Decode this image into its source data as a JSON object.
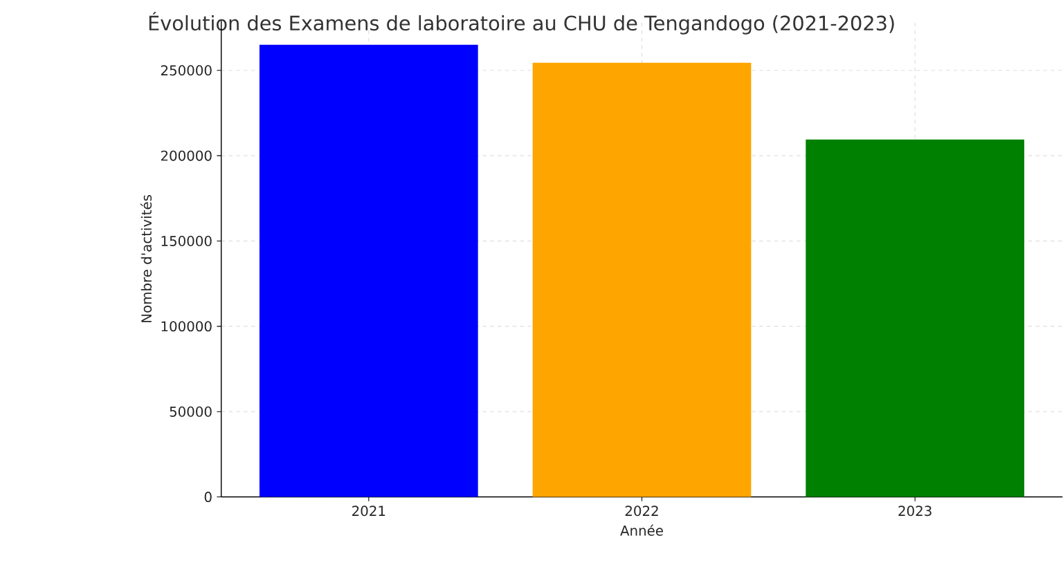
{
  "chart_data": {
    "type": "bar",
    "title": "Évolution des Examens de laboratoire au CHU de Tengandogo (2021-2023)",
    "xlabel": "Année",
    "ylabel": "Nombre d'activités",
    "categories": [
      "2021",
      "2022",
      "2023"
    ],
    "values": [
      265000,
      254500,
      209500
    ],
    "colors": [
      "#0000ff",
      "#ffa500",
      "#008000"
    ],
    "ylim": [
      0,
      279000
    ],
    "yticks": [
      0,
      50000,
      100000,
      150000,
      200000,
      250000
    ],
    "grid": true
  }
}
